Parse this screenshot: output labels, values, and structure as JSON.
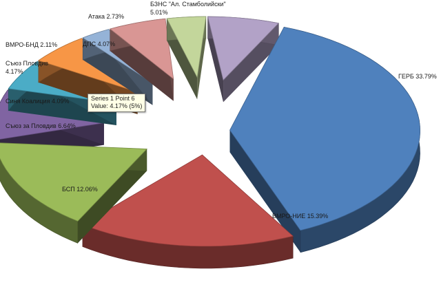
{
  "chart_data": {
    "type": "pie",
    "style": "3d-exploded",
    "slices": [
      {
        "label": "ГЕРБ 33.79%",
        "value": 33.79,
        "color": "#4f81bd"
      },
      {
        "label": "ВМРО-НИЕ 15.39%",
        "value": 15.39,
        "color": "#c0504d"
      },
      {
        "label": "БСП 12.06%",
        "value": 12.06,
        "color": "#9bbb59"
      },
      {
        "label": "Съюз за Пловдив 6.64%",
        "value": 6.64,
        "color": "#8064a2"
      },
      {
        "label": "Синя Коалиция 4.09%",
        "value": 4.09,
        "color": "#4bacc6"
      },
      {
        "label": "Съюз Пловдив\n4.17%",
        "value": 4.17,
        "color": "#f79646"
      },
      {
        "label": "ВМРО-БНД 2.11%",
        "value": 2.11,
        "color": "#95b3d7"
      },
      {
        "label": "ДПС 4.07%",
        "value": 4.07,
        "color": "#d99694"
      },
      {
        "label": "Атака 2.73%",
        "value": 2.73,
        "color": "#c3d69b"
      },
      {
        "label": "БЗНС \"Ал. Стамболийски\"\n5.01%",
        "value": 5.01,
        "color": "#b2a2c7"
      }
    ]
  },
  "tooltip": {
    "line1": "Series 1 Point 6",
    "line2": "Value: 4.17% (5%)"
  }
}
